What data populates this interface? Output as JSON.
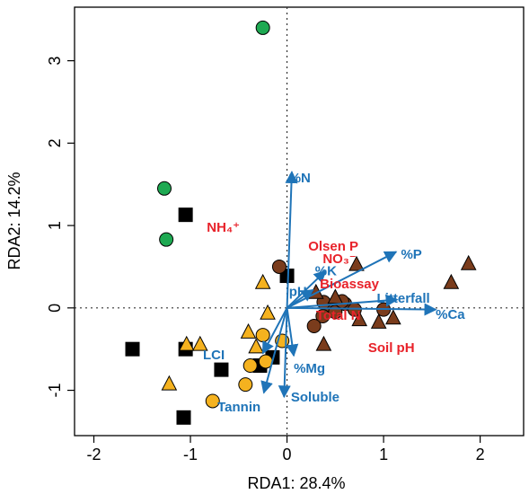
{
  "chart_data": {
    "type": "scatter",
    "title": "",
    "xlabel": "RDA1: 28.4%",
    "ylabel": "RDA2: 14.2%",
    "xlim": [
      -2.2,
      2.45
    ],
    "ylim": [
      -1.55,
      3.65
    ],
    "xticks": [
      -2,
      -1,
      0,
      1,
      2
    ],
    "yticks": [
      -1,
      0,
      1,
      2,
      3
    ],
    "xtick_labels": [
      "-2",
      "-1",
      "0",
      "1",
      "2"
    ],
    "ytick_labels": [
      "-1",
      "0",
      "1",
      "2",
      "3"
    ],
    "grid": false,
    "reference_lines": {
      "x": 0,
      "y": 0,
      "style": "dotted"
    },
    "colors": {
      "vector": "#1f74b8",
      "sig_label": "#e8222a",
      "green": "#1ea952",
      "brown": "#7a3c1c",
      "yellow": "#f5b21f",
      "black": "#000000"
    },
    "series": [
      {
        "marker": "circle",
        "color": "#1ea952",
        "points": [
          {
            "x": -0.25,
            "y": 3.4
          },
          {
            "x": -1.27,
            "y": 1.45
          },
          {
            "x": -1.25,
            "y": 0.83
          }
        ]
      },
      {
        "marker": "square",
        "color": "#000000",
        "points": [
          {
            "x": -1.05,
            "y": 1.13
          },
          {
            "x": 0.0,
            "y": 0.39
          },
          {
            "x": -1.6,
            "y": -0.5
          },
          {
            "x": -1.05,
            "y": -0.5
          },
          {
            "x": -0.68,
            "y": -0.75
          },
          {
            "x": -0.15,
            "y": -0.6
          },
          {
            "x": -0.28,
            "y": -0.7
          },
          {
            "x": -1.07,
            "y": -1.33
          }
        ]
      },
      {
        "marker": "circle",
        "color": "#7a3c1c",
        "points": [
          {
            "x": -0.08,
            "y": 0.5
          },
          {
            "x": 0.42,
            "y": 0.03
          },
          {
            "x": 0.5,
            "y": -0.05
          },
          {
            "x": 0.37,
            "y": -0.1
          },
          {
            "x": 0.6,
            "y": 0.05
          },
          {
            "x": 0.7,
            "y": -0.02
          },
          {
            "x": 0.57,
            "y": 0.08
          },
          {
            "x": 0.38,
            "y": 0.07
          },
          {
            "x": 1.0,
            "y": -0.02
          },
          {
            "x": 0.28,
            "y": -0.22
          }
        ]
      },
      {
        "marker": "triangle",
        "color": "#7a3c1c",
        "points": [
          {
            "x": 0.72,
            "y": 0.52
          },
          {
            "x": 0.3,
            "y": 0.18
          },
          {
            "x": 0.5,
            "y": 0.12
          },
          {
            "x": 0.75,
            "y": -0.15
          },
          {
            "x": 0.95,
            "y": -0.18
          },
          {
            "x": 1.1,
            "y": -0.13
          },
          {
            "x": 1.7,
            "y": 0.3
          },
          {
            "x": 1.88,
            "y": 0.53
          },
          {
            "x": 0.38,
            "y": -0.45
          }
        ]
      },
      {
        "marker": "circle",
        "color": "#f5b21f",
        "points": [
          {
            "x": -0.05,
            "y": -0.4
          },
          {
            "x": -0.25,
            "y": -0.33
          },
          {
            "x": -0.38,
            "y": -0.7
          },
          {
            "x": -0.43,
            "y": -0.93
          },
          {
            "x": -0.77,
            "y": -1.13
          },
          {
            "x": -0.22,
            "y": -0.65
          }
        ]
      },
      {
        "marker": "triangle",
        "color": "#f5b21f",
        "points": [
          {
            "x": -0.25,
            "y": 0.3
          },
          {
            "x": -0.2,
            "y": -0.07
          },
          {
            "x": -0.4,
            "y": -0.3
          },
          {
            "x": -1.04,
            "y": -0.45
          },
          {
            "x": -0.9,
            "y": -0.45
          },
          {
            "x": -0.32,
            "y": -0.48
          },
          {
            "x": -1.22,
            "y": -0.93
          }
        ]
      }
    ],
    "vectors": [
      {
        "label": "%N",
        "x": 0.05,
        "y": 1.65,
        "lx": 0.02,
        "ly": 1.58,
        "anchor": "start",
        "color": "#1f74b8"
      },
      {
        "label": "%P",
        "x": 1.13,
        "y": 0.68,
        "lx": 1.18,
        "ly": 0.65,
        "anchor": "start",
        "color": "#1f74b8"
      },
      {
        "label": "%K",
        "x": 0.4,
        "y": 0.45,
        "lx": 0.29,
        "ly": 0.45,
        "anchor": "start",
        "color": "#1f74b8"
      },
      {
        "label": "pH",
        "x": 0.27,
        "y": 0.22,
        "lx": 0.02,
        "ly": 0.2,
        "anchor": "start",
        "color": "#1f74b8"
      },
      {
        "label": "Litterfall",
        "x": 1.14,
        "y": 0.1,
        "lx": 0.93,
        "ly": 0.12,
        "anchor": "start",
        "color": "#1f74b8"
      },
      {
        "label": "%Ca",
        "x": 1.54,
        "y": -0.02,
        "lx": 1.54,
        "ly": -0.08,
        "anchor": "start",
        "color": "#1f74b8"
      },
      {
        "label": "%Mg",
        "x": 0.07,
        "y": -0.58,
        "lx": 0.07,
        "ly": -0.73,
        "anchor": "start",
        "color": "#1f74b8"
      },
      {
        "label": "LCI",
        "x": -0.25,
        "y": -0.55,
        "lx": -0.87,
        "ly": -0.57,
        "anchor": "start",
        "color": "#1f74b8"
      },
      {
        "label": "Tannin",
        "x": -0.24,
        "y": -1.03,
        "lx": -0.72,
        "ly": -1.2,
        "anchor": "start",
        "color": "#1f74b8"
      },
      {
        "label": "Soluble",
        "x": -0.03,
        "y": -1.08,
        "lx": 0.04,
        "ly": -1.08,
        "anchor": "start",
        "color": "#1f74b8"
      }
    ],
    "red_labels": [
      {
        "text": "NH₄⁺",
        "x": -0.83,
        "y": 0.98,
        "color": "#e8222a"
      },
      {
        "text": "Olsen P",
        "x": 0.22,
        "y": 0.75,
        "color": "#e8222a"
      },
      {
        "text": "NO₃⁻",
        "x": 0.37,
        "y": 0.6,
        "color": "#e8222a"
      },
      {
        "text": "Bioassay",
        "x": 0.34,
        "y": 0.29,
        "color": "#e8222a"
      },
      {
        "text": "Total N",
        "x": 0.3,
        "y": -0.09,
        "color": "#e8222a"
      },
      {
        "text": "Soil pH",
        "x": 0.84,
        "y": -0.48,
        "color": "#e8222a"
      }
    ]
  }
}
